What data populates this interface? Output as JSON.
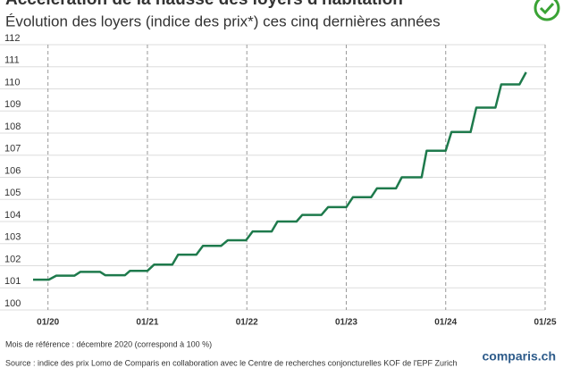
{
  "chart_data": {
    "type": "line",
    "title": "Accélération de la hausse des loyers d'habitation",
    "subtitle": "Évolution des loyers (indice des prix*) ces cinq dernières années",
    "x": [
      -1.8,
      0.1,
      1,
      3.2,
      3.9,
      6.3,
      6.9,
      9.3,
      9.9,
      12,
      12.8,
      15,
      15.7,
      17.9,
      18.7,
      20.9,
      21.7,
      23.9,
      24.7,
      27,
      27.7,
      30,
      30.7,
      33,
      33.8,
      36,
      36.8,
      39,
      39.7,
      42,
      42.7,
      45.1,
      45.7,
      48,
      48.7,
      51,
      51.7,
      54,
      54.7,
      56.9,
      57.7
    ],
    "series": [
      {
        "name": "Indice des prix",
        "color": "#1e7a4c",
        "values": [
          101.37,
          101.37,
          101.55,
          101.55,
          101.72,
          101.72,
          101.57,
          101.57,
          101.77,
          101.77,
          102.05,
          102.05,
          102.5,
          102.5,
          102.9,
          102.9,
          103.15,
          103.15,
          103.55,
          103.55,
          104.0,
          104.0,
          104.3,
          104.3,
          104.65,
          104.65,
          105.1,
          105.1,
          105.5,
          105.5,
          106.0,
          106.0,
          107.2,
          107.2,
          108.05,
          108.05,
          109.15,
          109.15,
          110.2,
          110.2,
          110.75
        ]
      }
    ],
    "xlim": [
      -1.8,
      60
    ],
    "xticks": [
      {
        "value": 0,
        "label": "01/20"
      },
      {
        "value": 12,
        "label": "01/21"
      },
      {
        "value": 24,
        "label": "01/22"
      },
      {
        "value": 36,
        "label": "01/23"
      },
      {
        "value": 48,
        "label": "01/24"
      },
      {
        "value": 60,
        "label": "01/25"
      }
    ],
    "ylim": [
      100,
      112
    ],
    "yticks": [
      100,
      101,
      102,
      103,
      104,
      105,
      106,
      107,
      108,
      109,
      110,
      111,
      112
    ],
    "grid": true,
    "note": "Mois de référence : décembre 2020 (correspond à 100 %)",
    "source": "Source : indice des prix Lomo de Comparis en collaboration avec le Centre de recherches conjoncturelles KOF de l'EPF Zurich",
    "brand": "comparis.ch"
  }
}
